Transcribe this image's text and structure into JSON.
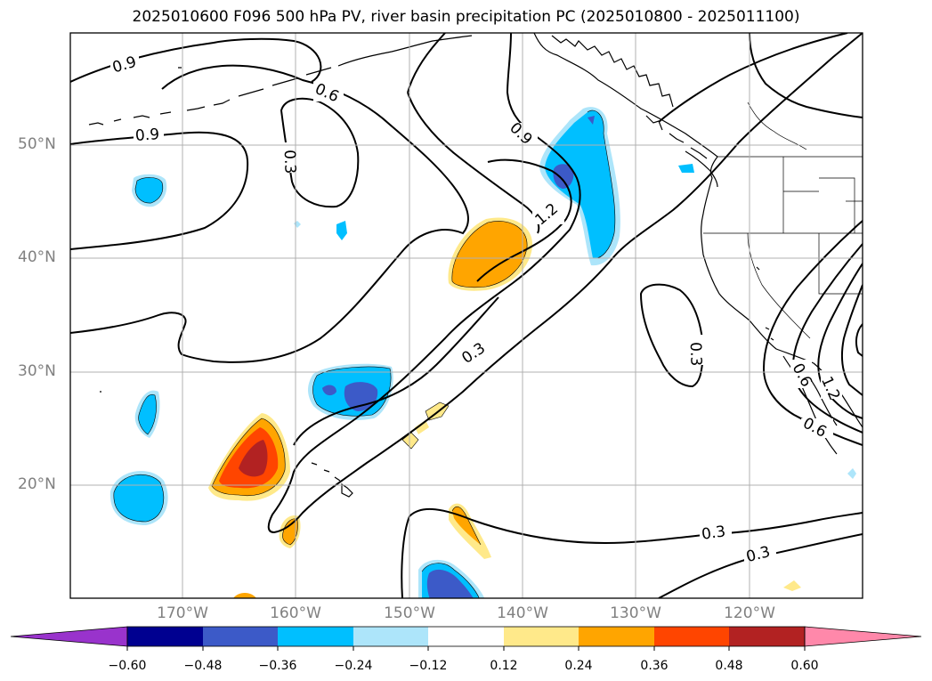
{
  "title": "2025010600 F096 500 hPa PV, river basin precipitation PC (2025010800 - 2025011100)",
  "grid": {
    "lat_labels": [
      "50°N",
      "40°N",
      "30°N",
      "20°N"
    ],
    "lon_labels": [
      "170°W",
      "160°W",
      "150°W",
      "140°W",
      "130°W",
      "120°W"
    ]
  },
  "contour_labels": {
    "values": [
      "0.9",
      "0.6",
      "0.9",
      "0.3",
      "0.9",
      "1.2",
      "0.3",
      "0.3",
      "0.3",
      "0.3",
      "0.6",
      "0.6",
      "1.2"
    ]
  },
  "colorbar": {
    "ticks": [
      "−0.60",
      "−0.48",
      "−0.36",
      "−0.24",
      "−0.12",
      "0.12",
      "0.24",
      "0.36",
      "0.48",
      "0.60"
    ],
    "colors": [
      "#9933cc",
      "#000090",
      "#3c5ac8",
      "#00bfff",
      "#ade5fa",
      "#ffffff",
      "#ffe98a",
      "#ffa500",
      "#ff4500",
      "#b22222",
      "#ff88aa"
    ]
  },
  "colors": {
    "neg_strong": "#3c5ac8",
    "neg_mid": "#00bfff",
    "neg_weak": "#ade5fa",
    "pos_weak": "#ffe98a",
    "pos_mid": "#ffa500",
    "pos_strong": "#ff4500",
    "pos_max": "#b22222",
    "grid": "#b0b0b0",
    "label_gray": "#808080"
  }
}
